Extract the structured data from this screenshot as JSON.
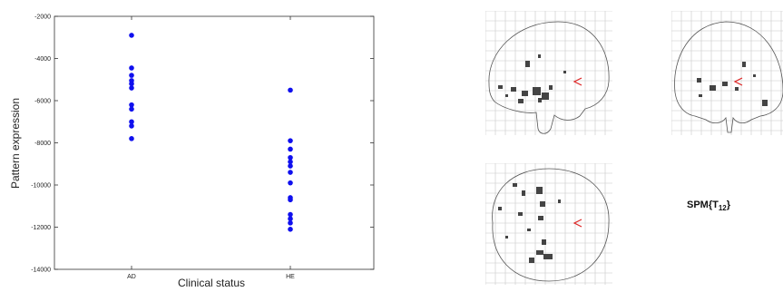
{
  "chart_data": {
    "type": "scatter",
    "xlabel": "Clinical status",
    "ylabel": "Pattern expression",
    "categories": [
      "AD",
      "HE"
    ],
    "ylim": [
      -14000,
      -2000
    ],
    "yticks": [
      -2000,
      -4000,
      -6000,
      -8000,
      -10000,
      -12000,
      -14000
    ],
    "ytick_labels": [
      "-2000",
      "-4000",
      "-6000",
      "-8000",
      "-10000",
      "-12000",
      "-14000"
    ],
    "grid": false,
    "marker_color": "#1010ee",
    "series": [
      {
        "category": "AD",
        "values": [
          -2900,
          -4450,
          -4800,
          -5050,
          -5200,
          -5400,
          -6200,
          -6400,
          -7000,
          -7200,
          -7800
        ]
      },
      {
        "category": "HE",
        "values": [
          -5500,
          -7900,
          -8300,
          -8700,
          -8900,
          -9100,
          -9400,
          -9900,
          -10600,
          -10700,
          -11400,
          -11600,
          -11800,
          -12100
        ]
      }
    ]
  },
  "spm": {
    "label_prefix": "SPM{T",
    "label_sub": "12",
    "label_suffix": "}",
    "marker_color": "#dd2222"
  }
}
